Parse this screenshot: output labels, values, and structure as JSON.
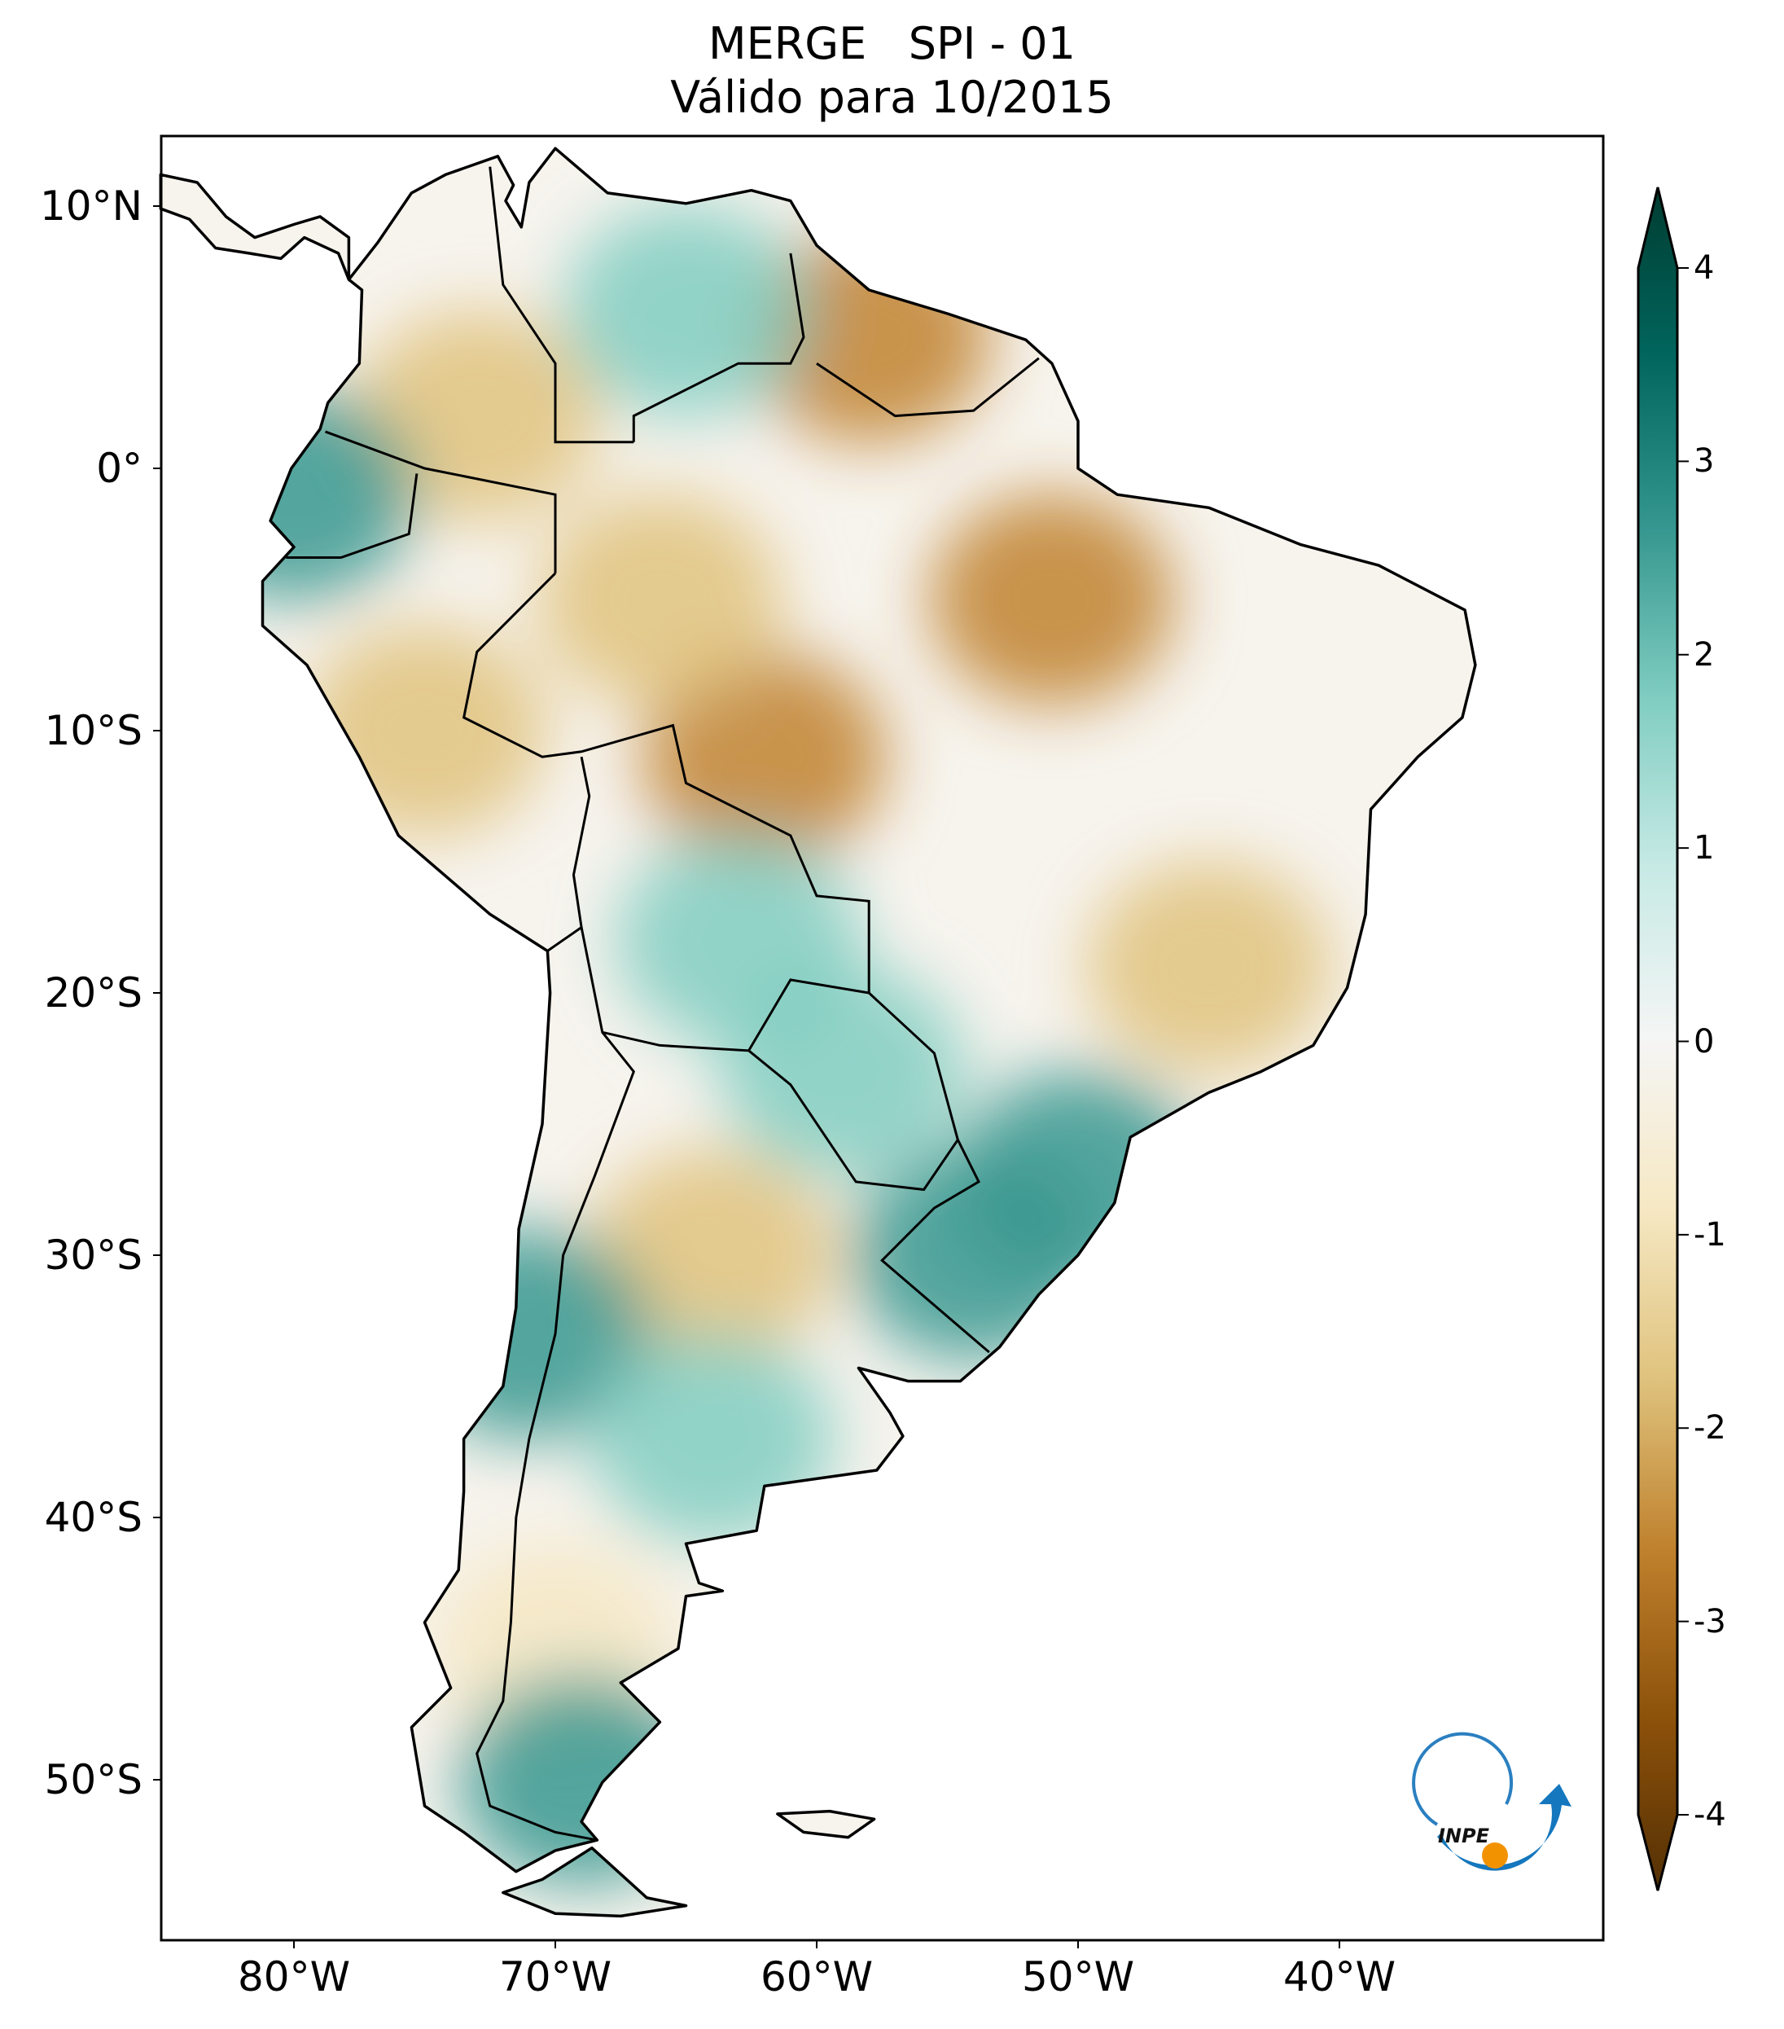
{
  "title": {
    "line1": "MERGE   SPI - 01",
    "line2": "Válido para 10/2015"
  },
  "axes": {
    "lat_labels": [
      {
        "lat": 10,
        "text": "10°N"
      },
      {
        "lat": 0,
        "text": "0°"
      },
      {
        "lat": -10,
        "text": "10°S"
      },
      {
        "lat": -20,
        "text": "20°S"
      },
      {
        "lat": -30,
        "text": "30°S"
      },
      {
        "lat": -40,
        "text": "40°S"
      },
      {
        "lat": -50,
        "text": "50°S"
      }
    ],
    "lon_labels": [
      {
        "lon": -80,
        "text": "80°W"
      },
      {
        "lon": -70,
        "text": "70°W"
      },
      {
        "lon": -60,
        "text": "60°W"
      },
      {
        "lon": -50,
        "text": "50°W"
      },
      {
        "lon": -40,
        "text": "40°W"
      }
    ],
    "extent": {
      "lon_min": -85.1,
      "lon_max": -29.9,
      "lat_min": -56.1,
      "lat_max": 12.7
    }
  },
  "colorbar": {
    "min": -4,
    "max": 4,
    "extend": "both",
    "ticks": [
      "4",
      "3",
      "2",
      "1",
      "0",
      "-1",
      "-2",
      "-3",
      "-4"
    ],
    "colors": [
      "#543005",
      "#8c510a",
      "#bf812d",
      "#dfc27d",
      "#f6e8c3",
      "#f5f5f5",
      "#c7eae5",
      "#80cdc1",
      "#35978f",
      "#01665e",
      "#003c30"
    ]
  },
  "anomalies": [
    {
      "lon": -51,
      "lat": -5,
      "spi": -2.2
    },
    {
      "lon": -58,
      "lat": 5,
      "spi": -2.8
    },
    {
      "lon": -62,
      "lat": -11,
      "spi": -2.3
    },
    {
      "lon": -66,
      "lat": -5,
      "spi": -1.8
    },
    {
      "lon": -73,
      "lat": 2,
      "spi": -1.6
    },
    {
      "lon": -64,
      "lat": -30,
      "spi": -2.0
    },
    {
      "lon": -45,
      "lat": -19,
      "spi": -1.6
    },
    {
      "lon": -75,
      "lat": -10,
      "spi": -1.5
    },
    {
      "lon": -70,
      "lat": -45,
      "spi": -1.0
    },
    {
      "lon": -65,
      "lat": 6,
      "spi": 1.8
    },
    {
      "lon": -80,
      "lat": -1,
      "spi": 2.5
    },
    {
      "lon": -54,
      "lat": -30,
      "spi": 2.2
    },
    {
      "lon": -71,
      "lat": -33,
      "spi": 2.4
    },
    {
      "lon": -69,
      "lat": -50,
      "spi": 2.0
    },
    {
      "lon": -59,
      "lat": -23,
      "spi": 1.8
    },
    {
      "lon": -64,
      "lat": -37,
      "spi": 1.6
    },
    {
      "lon": -63,
      "lat": -18,
      "spi": 1.5
    },
    {
      "lon": -50,
      "lat": -27,
      "spi": 2.0
    }
  ],
  "logo": {
    "text": "INPE"
  }
}
